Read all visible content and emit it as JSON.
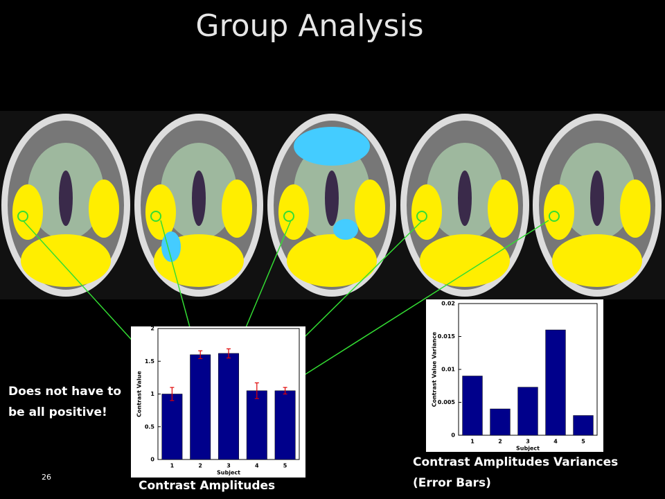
{
  "title": "Group Analysis",
  "note": [
    "Does not have to",
    "be all positive!"
  ],
  "page_number": "26",
  "captions": {
    "amplitudes": "Contrast Amplitudes",
    "variances": [
      "Contrast Amplitudes Variances",
      "(Error Bars)"
    ]
  },
  "chart_data": [
    {
      "type": "bar",
      "categories": [
        "1",
        "2",
        "3",
        "4",
        "5"
      ],
      "values": [
        1.0,
        1.6,
        1.62,
        1.05,
        1.05
      ],
      "errors": [
        0.1,
        0.06,
        0.07,
        0.12,
        0.05
      ],
      "color": "#00008b",
      "error_color": "#e00000",
      "ylim": [
        0,
        2
      ],
      "yticks": [
        0,
        0.5,
        1,
        1.5,
        2
      ],
      "xlabel": "Subject",
      "ylabel": "Contrast Value"
    },
    {
      "type": "bar",
      "categories": [
        "1",
        "2",
        "3",
        "4",
        "5"
      ],
      "values": [
        0.009,
        0.004,
        0.0073,
        0.016,
        0.003
      ],
      "color": "#00008b",
      "ylim": [
        0,
        0.02
      ],
      "yticks": [
        0,
        0.005,
        0.01,
        0.015,
        0.02
      ],
      "xlabel": "Subject",
      "ylabel": "Contrast Value Variance"
    }
  ]
}
